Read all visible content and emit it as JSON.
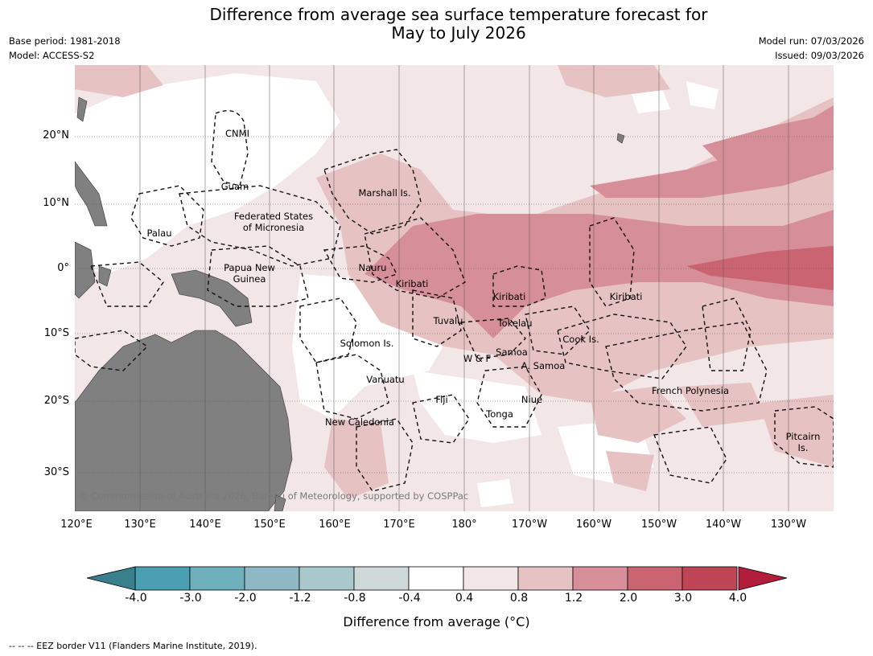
{
  "title": "Difference from average sea surface temperature forecast for\nMay to July 2026",
  "base_period": "Base period: 1981-2018",
  "model": "Model: ACCESS-S2",
  "model_run": "Model run: 07/03/2026",
  "issued": "Issued: 09/03/2026",
  "copyright": "© Commonwealth of Australia 2026, Bureau of Meteorology, supported by COSPPac",
  "lat_ticks": [
    "20°N",
    "10°N",
    "0°",
    "10°S",
    "20°S",
    "30°S"
  ],
  "lon_ticks": [
    "120°E",
    "130°E",
    "140°E",
    "150°E",
    "160°E",
    "170°E",
    "180°",
    "170°W",
    "160°W",
    "150°W",
    "140°W",
    "130°W"
  ],
  "places": [
    {
      "name": "CNMI"
    },
    {
      "name": "Guam"
    },
    {
      "name": "Marshall Is."
    },
    {
      "name": "Federated States\nof Micronesia"
    },
    {
      "name": "Palau"
    },
    {
      "name": "Papua New\nGuinea"
    },
    {
      "name": "Nauru"
    },
    {
      "name": "Kiribati"
    },
    {
      "name": "Kiribati"
    },
    {
      "name": "Kiribati"
    },
    {
      "name": "Tuvalu"
    },
    {
      "name": "Tokelau"
    },
    {
      "name": "Cook Is."
    },
    {
      "name": "Solomon Is."
    },
    {
      "name": "Samoa"
    },
    {
      "name": "W & F"
    },
    {
      "name": "A. Samoa"
    },
    {
      "name": "Vanuatu"
    },
    {
      "name": "Fiji"
    },
    {
      "name": "Niue"
    },
    {
      "name": "Tonga"
    },
    {
      "name": "French Polynesia"
    },
    {
      "name": "New Caledonia"
    },
    {
      "name": "Pitcairn\nIs."
    }
  ],
  "colorbar": {
    "ticks": [
      "-4.0",
      "-3.0",
      "-2.0",
      "-1.2",
      "-0.8",
      "-0.4",
      "0.4",
      "0.8",
      "1.2",
      "2.0",
      "3.0",
      "4.0"
    ],
    "colors": [
      "#4aa0b2",
      "#6fb0bd",
      "#8eb8c4",
      "#a9c8cc",
      "#cfd8d9",
      "#ffffff",
      "#f3e6e6",
      "#e6c2c2",
      "#d68e98",
      "#c96470",
      "#bf4556"
    ],
    "under_color": "#3a7f8c",
    "over_color": "#b11d3a",
    "label": "Difference from average (°C)"
  },
  "footnote": "--  --  -- EEZ border V11 (Flanders Marine Institute, 2019).",
  "colors": {
    "land": "#808080",
    "anomaly_0_4_0_8": "#f3e6e6",
    "anomaly_0_8_1_2": "#e6c2c2",
    "anomaly_1_2_2_0": "#d68e98",
    "anomaly_2_0_3_0": "#c96470"
  }
}
